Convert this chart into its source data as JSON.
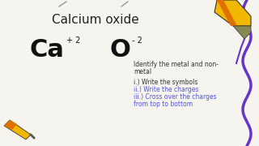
{
  "background_color": "#f5f4ee",
  "title": "Calcium oxide",
  "title_fontsize": 11,
  "title_color": "#222222",
  "ca_symbol": "Ca",
  "o_symbol": "O",
  "ca_charge": "+ 2",
  "o_charge": "- 2",
  "symbol_fontsize": 22,
  "charge_fontsize": 7,
  "right_text_lines": [
    [
      "Identify the metal and non-",
      "#333333"
    ],
    [
      "metal",
      "#333333"
    ],
    [
      "",
      "#333333"
    ],
    [
      "i.) Write the symbols",
      "#333333"
    ],
    [
      "ii.) Write the charges",
      "#5555dd"
    ],
    [
      "iii.) Cross over the charges",
      "#5555dd"
    ],
    [
      "from top to bottom",
      "#5555dd"
    ]
  ],
  "wavy_line_color": "#6633cc",
  "pencil_yellow": "#f0b800",
  "pencil_orange": "#e07000",
  "pencil_dark": "#333333"
}
